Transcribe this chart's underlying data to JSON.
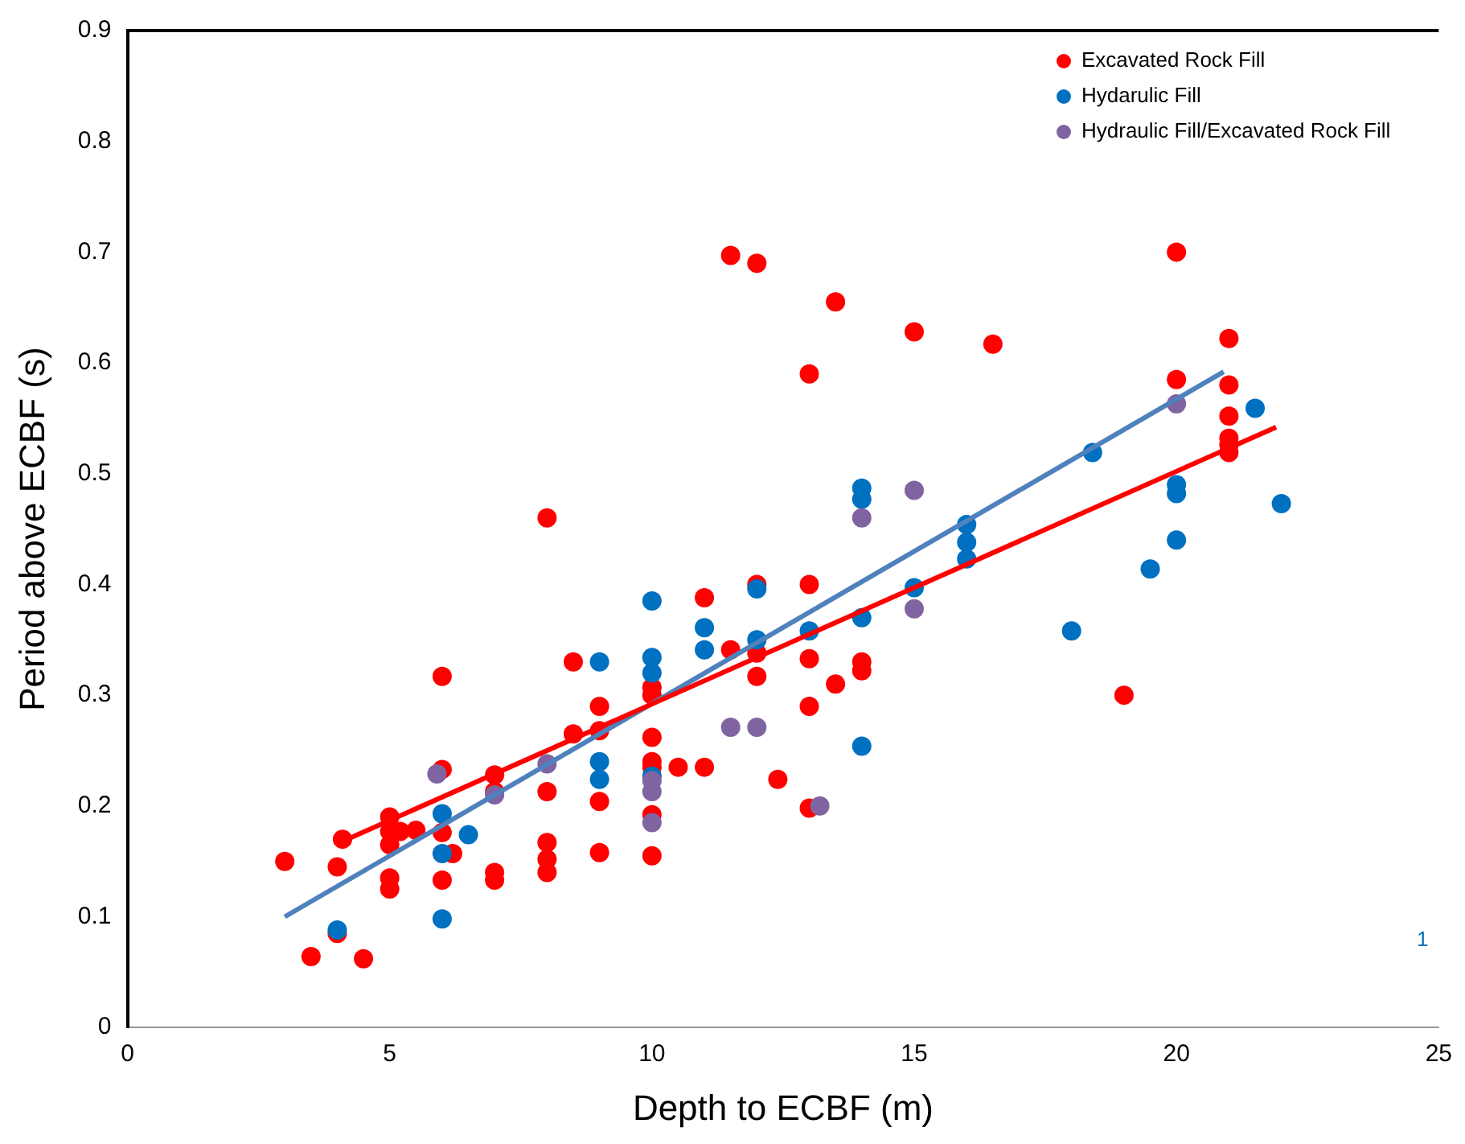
{
  "chart_data": {
    "type": "scatter",
    "xlabel": "Depth to ECBF (m)",
    "ylabel": "Period above ECBF (s)",
    "xlim": [
      0,
      25
    ],
    "xticks": [
      0,
      5,
      10,
      15,
      20,
      25
    ],
    "ylim": [
      0,
      0.9
    ],
    "yticks": [
      0,
      0.1,
      0.2,
      0.3,
      0.4,
      0.5,
      0.6,
      0.7,
      0.8,
      0.9
    ],
    "grid": false,
    "legend": "top right",
    "marker": "circle",
    "annotations": [
      "1"
    ],
    "series": [
      {
        "name": "Excavated Rock Fill",
        "color": "#ff0000",
        "x": [
          3,
          3.5,
          4,
          4,
          4.1,
          4.5,
          5,
          5,
          5,
          5,
          5,
          5.2,
          5.5,
          6,
          6,
          6,
          6,
          6.2,
          7,
          7,
          7,
          7,
          8,
          8,
          8,
          8,
          8,
          8.5,
          8.5,
          9,
          9,
          9,
          9,
          10,
          10,
          10,
          10,
          10,
          10,
          10,
          10.5,
          11,
          11,
          11.5,
          11.5,
          12,
          12,
          12,
          12,
          12.4,
          13,
          13,
          13,
          13,
          13,
          13.5,
          13.5,
          14,
          14,
          15,
          16.5,
          19,
          20,
          20,
          21,
          21,
          21,
          21,
          21,
          21
        ],
        "values": [
          0.15,
          0.064,
          0.085,
          0.145,
          0.17,
          0.062,
          0.19,
          0.177,
          0.165,
          0.135,
          0.125,
          0.177,
          0.178,
          0.317,
          0.233,
          0.176,
          0.133,
          0.157,
          0.228,
          0.213,
          0.14,
          0.133,
          0.46,
          0.213,
          0.167,
          0.152,
          0.14,
          0.33,
          0.265,
          0.29,
          0.268,
          0.204,
          0.158,
          0.307,
          0.3,
          0.262,
          0.24,
          0.235,
          0.192,
          0.155,
          0.235,
          0.235,
          0.388,
          0.697,
          0.341,
          0.69,
          0.4,
          0.338,
          0.317,
          0.224,
          0.198,
          0.29,
          0.333,
          0.4,
          0.59,
          0.31,
          0.655,
          0.33,
          0.322,
          0.628,
          0.617,
          0.3,
          0.7,
          0.585,
          0.622,
          0.58,
          0.552,
          0.532,
          0.526,
          0.519
        ]
      },
      {
        "name": "Hydarulic Fill",
        "color": "#0070c0",
        "x": [
          4,
          6,
          6,
          6,
          6.5,
          9,
          9,
          9,
          10,
          10,
          10,
          10,
          11,
          11,
          12,
          12,
          13,
          14,
          14,
          14,
          14,
          15,
          16,
          16,
          16,
          18,
          18.4,
          19.5,
          20,
          20,
          20,
          21.5,
          22
        ],
        "values": [
          0.088,
          0.193,
          0.157,
          0.098,
          0.174,
          0.33,
          0.24,
          0.224,
          0.385,
          0.334,
          0.32,
          0.227,
          0.361,
          0.341,
          0.396,
          0.35,
          0.358,
          0.487,
          0.477,
          0.37,
          0.254,
          0.397,
          0.454,
          0.438,
          0.423,
          0.358,
          0.519,
          0.414,
          0.49,
          0.482,
          0.44,
          0.559,
          0.473
        ]
      },
      {
        "name": "Hydraulic Fill/Excavated Rock Fill",
        "color": "#8064a2",
        "x": [
          5.9,
          7,
          8,
          10,
          10,
          10,
          11.5,
          12,
          13.2,
          14,
          15,
          15,
          20
        ],
        "values": [
          0.229,
          0.21,
          0.238,
          0.223,
          0.213,
          0.185,
          0.271,
          0.271,
          0.2,
          0.46,
          0.485,
          0.378,
          0.563
        ]
      },
      {
        "type": "line",
        "color": "#ff0000",
        "marker": "none",
        "x": [
          4,
          21.9
        ],
        "values": [
          0.166,
          0.542
        ]
      },
      {
        "type": "line",
        "color": "#4f81bd",
        "marker": "none",
        "x": [
          3,
          20.9
        ],
        "values": [
          0.1,
          0.592
        ]
      }
    ]
  }
}
